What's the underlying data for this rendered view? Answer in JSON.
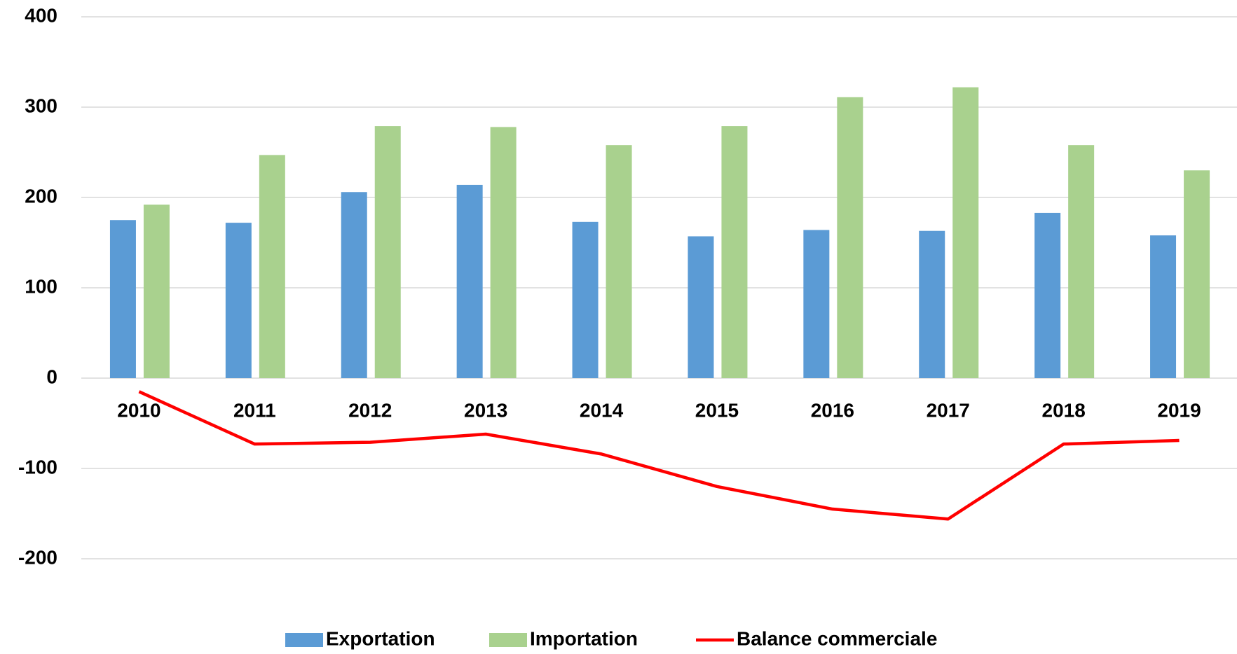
{
  "chart_data": {
    "type": "bar",
    "categories": [
      "2010",
      "2011",
      "2012",
      "2013",
      "2014",
      "2015",
      "2016",
      "2017",
      "2018",
      "2019"
    ],
    "series": [
      {
        "name": "Exportation",
        "type": "bar",
        "color": "#5b9bd5",
        "values": [
          175,
          172,
          206,
          214,
          173,
          157,
          164,
          163,
          183,
          158
        ]
      },
      {
        "name": "Importation",
        "type": "bar",
        "color": "#a9d18e",
        "values": [
          192,
          247,
          279,
          278,
          258,
          279,
          311,
          322,
          258,
          230
        ]
      },
      {
        "name": "Balance commerciale",
        "type": "line",
        "color": "#ff0000",
        "values": [
          -15,
          -73,
          -71,
          -62,
          -84,
          -120,
          -145,
          -156,
          -73,
          -69
        ]
      }
    ],
    "ylim": [
      -200,
      400
    ],
    "yticks": [
      -200,
      -100,
      0,
      100,
      200,
      300,
      400
    ],
    "grid": true,
    "legend": "bottom"
  }
}
